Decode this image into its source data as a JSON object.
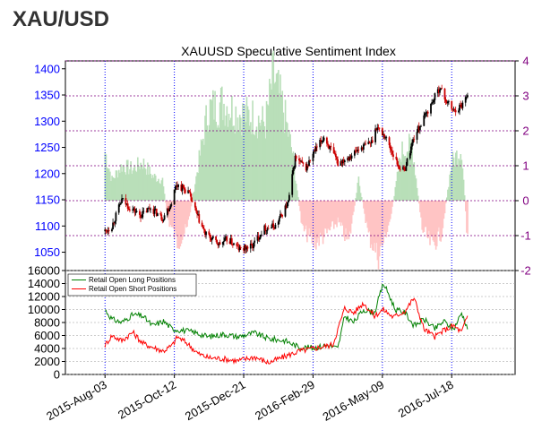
{
  "page": {
    "title": "XAU/USD"
  },
  "colors": {
    "price_axis": "#0000ff",
    "ssi_axis": "#800080",
    "ssi_positive": "#b9dfb9",
    "ssi_negative": "#ffc4c4",
    "candle_up": "#000000",
    "candle_down": "#cc0000",
    "long_line": "#008000",
    "short_line": "#ff0000",
    "grid_vertical": "#0000ff",
    "grid_horizontal": "#800080"
  },
  "chart_data": [
    {
      "type": "candlestick",
      "title": "XAUUSD Speculative Sentiment Index",
      "y_left": {
        "label": "",
        "ticks": [
          1050,
          1100,
          1150,
          1200,
          1250,
          1300,
          1350,
          1400
        ],
        "range": [
          1015,
          1415
        ]
      },
      "y_right": {
        "label": "",
        "ticks": [
          -2,
          -1,
          0,
          1,
          2,
          3,
          4
        ],
        "range": [
          -2,
          4
        ]
      },
      "x_ticks": [
        "2015-Aug-03",
        "2015-Oct-12",
        "2015-Dec-21",
        "2016-Feb-29",
        "2016-May-09",
        "2016-Jul-18"
      ],
      "grid": true,
      "price_path": [
        [
          "2015-08-03",
          1090
        ],
        [
          "2015-08-10",
          1100
        ],
        [
          "2015-08-20",
          1150
        ],
        [
          "2015-08-28",
          1135
        ],
        [
          "2015-09-08",
          1120
        ],
        [
          "2015-09-18",
          1135
        ],
        [
          "2015-09-30",
          1115
        ],
        [
          "2015-10-08",
          1140
        ],
        [
          "2015-10-14",
          1180
        ],
        [
          "2015-10-26",
          1165
        ],
        [
          "2015-11-04",
          1120
        ],
        [
          "2015-11-12",
          1085
        ],
        [
          "2015-11-26",
          1065
        ],
        [
          "2015-12-05",
          1075
        ],
        [
          "2015-12-17",
          1055
        ],
        [
          "2015-12-30",
          1062
        ],
        [
          "2016-01-10",
          1095
        ],
        [
          "2016-01-22",
          1100
        ],
        [
          "2016-02-04",
          1145
        ],
        [
          "2016-02-11",
          1230
        ],
        [
          "2016-02-22",
          1210
        ],
        [
          "2016-03-01",
          1240
        ],
        [
          "2016-03-11",
          1270
        ],
        [
          "2016-03-25",
          1220
        ],
        [
          "2016-04-07",
          1235
        ],
        [
          "2016-04-18",
          1250
        ],
        [
          "2016-04-28",
          1260
        ],
        [
          "2016-05-03",
          1290
        ],
        [
          "2016-05-12",
          1270
        ],
        [
          "2016-05-25",
          1215
        ],
        [
          "2016-05-31",
          1205
        ],
        [
          "2016-06-10",
          1270
        ],
        [
          "2016-06-17",
          1295
        ],
        [
          "2016-06-24",
          1320
        ],
        [
          "2016-07-06",
          1365
        ],
        [
          "2016-07-12",
          1340
        ],
        [
          "2016-07-20",
          1320
        ],
        [
          "2016-07-28",
          1330
        ],
        [
          "2016-08-03",
          1355
        ]
      ],
      "ssi_path": [
        [
          "2015-08-03",
          1.4
        ],
        [
          "2015-08-10",
          0.6
        ],
        [
          "2015-08-20",
          1.0
        ],
        [
          "2015-08-31",
          0.9
        ],
        [
          "2015-09-10",
          1.1
        ],
        [
          "2015-09-20",
          0.7
        ],
        [
          "2015-09-30",
          0.6
        ],
        [
          "2015-10-05",
          -0.5
        ],
        [
          "2015-10-15",
          -1.2
        ],
        [
          "2015-10-25",
          -0.8
        ],
        [
          "2015-11-05",
          1.0
        ],
        [
          "2015-11-15",
          2.6
        ],
        [
          "2015-11-30",
          2.8
        ],
        [
          "2015-12-15",
          2.5
        ],
        [
          "2015-12-31",
          2.4
        ],
        [
          "2016-01-12",
          2.2
        ],
        [
          "2016-01-20",
          3.6
        ],
        [
          "2016-01-30",
          2.6
        ],
        [
          "2016-02-08",
          1.4
        ],
        [
          "2016-02-18",
          -0.8
        ],
        [
          "2016-03-01",
          -1.2
        ],
        [
          "2016-03-12",
          -1.0
        ],
        [
          "2016-03-25",
          -0.6
        ],
        [
          "2016-04-05",
          -1.2
        ],
        [
          "2016-04-15",
          0.6
        ],
        [
          "2016-04-25",
          -1.0
        ],
        [
          "2016-05-05",
          -1.6
        ],
        [
          "2016-05-12",
          -1.0
        ],
        [
          "2016-05-18",
          -0.4
        ],
        [
          "2016-05-28",
          1.4
        ],
        [
          "2016-06-08",
          1.6
        ],
        [
          "2016-06-18",
          -0.8
        ],
        [
          "2016-06-28",
          -1.3
        ],
        [
          "2016-07-08",
          -0.9
        ],
        [
          "2016-07-18",
          1.1
        ],
        [
          "2016-07-28",
          1.5
        ],
        [
          "2016-08-03",
          -1.2
        ]
      ]
    },
    {
      "type": "line",
      "y_ticks": [
        0,
        2000,
        4000,
        6000,
        8000,
        10000,
        12000,
        14000,
        16000
      ],
      "ylim": [
        0,
        16000
      ],
      "grid": true,
      "legend_position": "top-left",
      "series": [
        {
          "name": "Retail Open Long Positions",
          "values": [
            [
              "2015-08-03",
              10000
            ],
            [
              "2015-08-10",
              8500
            ],
            [
              "2015-08-20",
              8000
            ],
            [
              "2015-08-31",
              9200
            ],
            [
              "2015-09-10",
              9000
            ],
            [
              "2015-09-20",
              7500
            ],
            [
              "2015-10-01",
              8200
            ],
            [
              "2015-10-10",
              7000
            ],
            [
              "2015-10-20",
              6800
            ],
            [
              "2015-11-01",
              6500
            ],
            [
              "2015-11-15",
              5800
            ],
            [
              "2015-12-01",
              6200
            ],
            [
              "2015-12-15",
              5800
            ],
            [
              "2016-01-01",
              6400
            ],
            [
              "2016-01-15",
              5500
            ],
            [
              "2016-02-01",
              5200
            ],
            [
              "2016-02-15",
              4200
            ],
            [
              "2016-03-01",
              4100
            ],
            [
              "2016-03-15",
              4500
            ],
            [
              "2016-03-25",
              4000
            ],
            [
              "2016-04-01",
              9000
            ],
            [
              "2016-04-10",
              8000
            ],
            [
              "2016-04-20",
              10000
            ],
            [
              "2016-05-01",
              9500
            ],
            [
              "2016-05-10",
              14000
            ],
            [
              "2016-05-15",
              12500
            ],
            [
              "2016-05-22",
              10000
            ],
            [
              "2016-06-01",
              9500
            ],
            [
              "2016-06-10",
              7500
            ],
            [
              "2016-06-20",
              8500
            ],
            [
              "2016-07-01",
              7000
            ],
            [
              "2016-07-10",
              8200
            ],
            [
              "2016-07-20",
              7000
            ],
            [
              "2016-07-28",
              9500
            ],
            [
              "2016-08-03",
              7200
            ]
          ]
        },
        {
          "name": "Retail Open Short Positions",
          "values": [
            [
              "2015-08-03",
              4500
            ],
            [
              "2015-08-10",
              6000
            ],
            [
              "2015-08-20",
              5200
            ],
            [
              "2015-08-31",
              6500
            ],
            [
              "2015-09-10",
              4800
            ],
            [
              "2015-09-20",
              4200
            ],
            [
              "2015-10-01",
              3600
            ],
            [
              "2015-10-10",
              4500
            ],
            [
              "2015-10-15",
              5800
            ],
            [
              "2015-10-25",
              4800
            ],
            [
              "2015-11-05",
              3200
            ],
            [
              "2015-11-15",
              2600
            ],
            [
              "2015-12-01",
              2400
            ],
            [
              "2015-12-15",
              2100
            ],
            [
              "2016-01-01",
              2700
            ],
            [
              "2016-01-15",
              1800
            ],
            [
              "2016-02-01",
              2800
            ],
            [
              "2016-02-15",
              3600
            ],
            [
              "2016-03-01",
              4000
            ],
            [
              "2016-03-20",
              4600
            ],
            [
              "2016-04-01",
              10200
            ],
            [
              "2016-04-10",
              9500
            ],
            [
              "2016-04-20",
              11000
            ],
            [
              "2016-05-01",
              9000
            ],
            [
              "2016-05-10",
              10000
            ],
            [
              "2016-05-20",
              8800
            ],
            [
              "2016-06-01",
              9800
            ],
            [
              "2016-06-10",
              11800
            ],
            [
              "2016-06-20",
              7000
            ],
            [
              "2016-07-01",
              5800
            ],
            [
              "2016-07-10",
              6800
            ],
            [
              "2016-07-20",
              7500
            ],
            [
              "2016-07-28",
              6500
            ],
            [
              "2016-08-03",
              9000
            ]
          ]
        }
      ]
    }
  ]
}
